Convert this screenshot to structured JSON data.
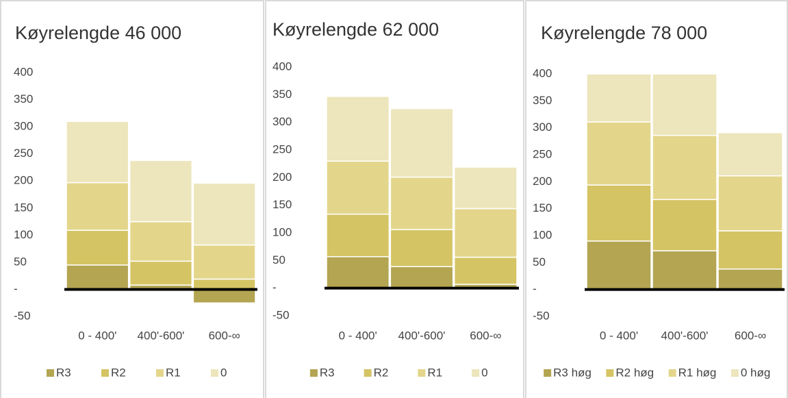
{
  "chart_data": [
    {
      "type": "bar",
      "stacked": true,
      "title": "Køyrelengde 46 000",
      "categories": [
        "0 - 400'",
        "400'-600'",
        "600-∞"
      ],
      "series": [
        {
          "name": "R3",
          "color": "#b3a552",
          "values": [
            45,
            8,
            -25
          ]
        },
        {
          "name": "R2",
          "color": "#d4c464",
          "values": [
            64,
            44,
            19
          ]
        },
        {
          "name": "R1",
          "color": "#e3d68b",
          "values": [
            88,
            73,
            63
          ]
        },
        {
          "name": "0",
          "color": "#ede5bb",
          "values": [
            113,
            113,
            114
          ]
        }
      ],
      "ylim": [
        -50,
        400
      ],
      "yticks": [
        -50,
        {
          "value": 0,
          "label": "-"
        },
        50,
        100,
        150,
        200,
        250,
        300,
        350,
        400
      ]
    },
    {
      "type": "bar",
      "stacked": true,
      "title": "Køyrelengde 62 000",
      "categories": [
        "0 - 400'",
        "400'-600'",
        "600-∞"
      ],
      "series": [
        {
          "name": "R3",
          "color": "#b3a552",
          "values": [
            57,
            39,
            7
          ]
        },
        {
          "name": "R2",
          "color": "#d4c464",
          "values": [
            77,
            67,
            49
          ]
        },
        {
          "name": "R1",
          "color": "#e3d68b",
          "values": [
            96,
            95,
            88
          ]
        },
        {
          "name": "0",
          "color": "#ede5bb",
          "values": [
            117,
            124,
            75
          ]
        }
      ],
      "ylim": [
        -50,
        400
      ],
      "yticks": [
        -50,
        {
          "value": 0,
          "label": "-"
        },
        50,
        100,
        150,
        200,
        250,
        300,
        350,
        400
      ]
    },
    {
      "type": "bar",
      "stacked": true,
      "title": "Køyrelengde 78 000",
      "categories": [
        "0 - 400'",
        "400'-600'",
        "600-∞"
      ],
      "series": [
        {
          "name": "R3 høg",
          "color": "#b3a552",
          "values": [
            90,
            72,
            38
          ]
        },
        {
          "name": "R2 høg",
          "color": "#d4c464",
          "values": [
            104,
            95,
            71
          ]
        },
        {
          "name": "R1 høg",
          "color": "#e3d68b",
          "values": [
            117,
            119,
            102
          ]
        },
        {
          "name": "0 høg",
          "color": "#ede5bb",
          "values": [
            89,
            114,
            80
          ]
        }
      ],
      "ylim": [
        -50,
        400
      ],
      "yticks": [
        -50,
        {
          "value": 0,
          "label": "-"
        },
        50,
        100,
        150,
        200,
        250,
        300,
        350,
        400
      ]
    }
  ]
}
